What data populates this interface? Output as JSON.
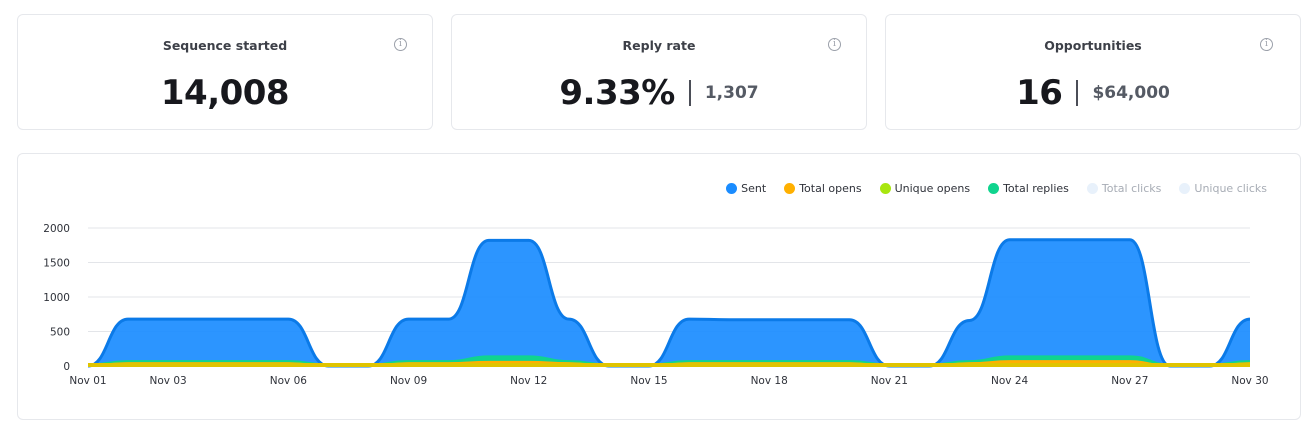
{
  "stats": {
    "sequence_started": {
      "title": "Sequence started",
      "value": "14,008"
    },
    "reply_rate": {
      "title": "Reply rate",
      "value": "9.33%",
      "sub": "1,307"
    },
    "opportunities": {
      "title": "Opportunities",
      "value": "16",
      "sub": "$64,000"
    },
    "info_symbol": "i"
  },
  "chart_data": {
    "type": "area",
    "ylim": [
      0,
      2000
    ],
    "yticks": [
      "0",
      "500",
      "1000",
      "1500",
      "2000"
    ],
    "x_labels": [
      "Nov 01",
      "Nov 03",
      "Nov 06",
      "Nov 09",
      "Nov 12",
      "Nov 15",
      "Nov 18",
      "Nov 21",
      "Nov 24",
      "Nov 27",
      "Nov 30"
    ],
    "x_label_days": [
      1,
      3,
      6,
      9,
      12,
      15,
      18,
      21,
      24,
      27,
      30
    ],
    "grid": true,
    "legend_position": "top-right",
    "days": [
      1,
      2,
      3,
      4,
      5,
      6,
      7,
      8,
      9,
      10,
      11,
      12,
      13,
      14,
      15,
      16,
      17,
      18,
      19,
      20,
      21,
      22,
      23,
      24,
      25,
      26,
      27,
      28,
      29,
      30
    ],
    "series": [
      {
        "name": "Sent",
        "color": "#1a8cff",
        "enabled": true,
        "values": [
          0,
          680,
          680,
          680,
          680,
          680,
          0,
          0,
          680,
          680,
          1820,
          1820,
          680,
          0,
          0,
          680,
          670,
          670,
          670,
          670,
          0,
          0,
          660,
          1830,
          1830,
          1830,
          1830,
          0,
          0,
          680
        ]
      },
      {
        "name": "Total opens",
        "color": "#ffb000",
        "enabled": true,
        "values": [
          10,
          40,
          40,
          40,
          40,
          40,
          0,
          0,
          40,
          40,
          60,
          60,
          40,
          0,
          0,
          40,
          40,
          40,
          40,
          40,
          0,
          0,
          40,
          70,
          70,
          70,
          70,
          0,
          0,
          40
        ]
      },
      {
        "name": "Unique opens",
        "color": "#a8e60f",
        "enabled": true,
        "values": [
          15,
          40,
          40,
          40,
          40,
          40,
          10,
          10,
          40,
          40,
          50,
          50,
          40,
          10,
          10,
          40,
          40,
          40,
          40,
          40,
          10,
          10,
          40,
          55,
          55,
          55,
          55,
          10,
          10,
          40
        ]
      },
      {
        "name": "Total replies",
        "color": "#10d48e",
        "enabled": true,
        "values": [
          20,
          70,
          70,
          70,
          70,
          70,
          20,
          20,
          70,
          70,
          140,
          140,
          70,
          20,
          20,
          70,
          70,
          70,
          70,
          70,
          20,
          20,
          70,
          140,
          140,
          140,
          140,
          20,
          20,
          70
        ]
      },
      {
        "name": "Total clicks",
        "color": "#e8f1fb",
        "enabled": false,
        "values": []
      },
      {
        "name": "Unique clicks",
        "color": "#e8f1fb",
        "enabled": false,
        "values": []
      }
    ]
  }
}
